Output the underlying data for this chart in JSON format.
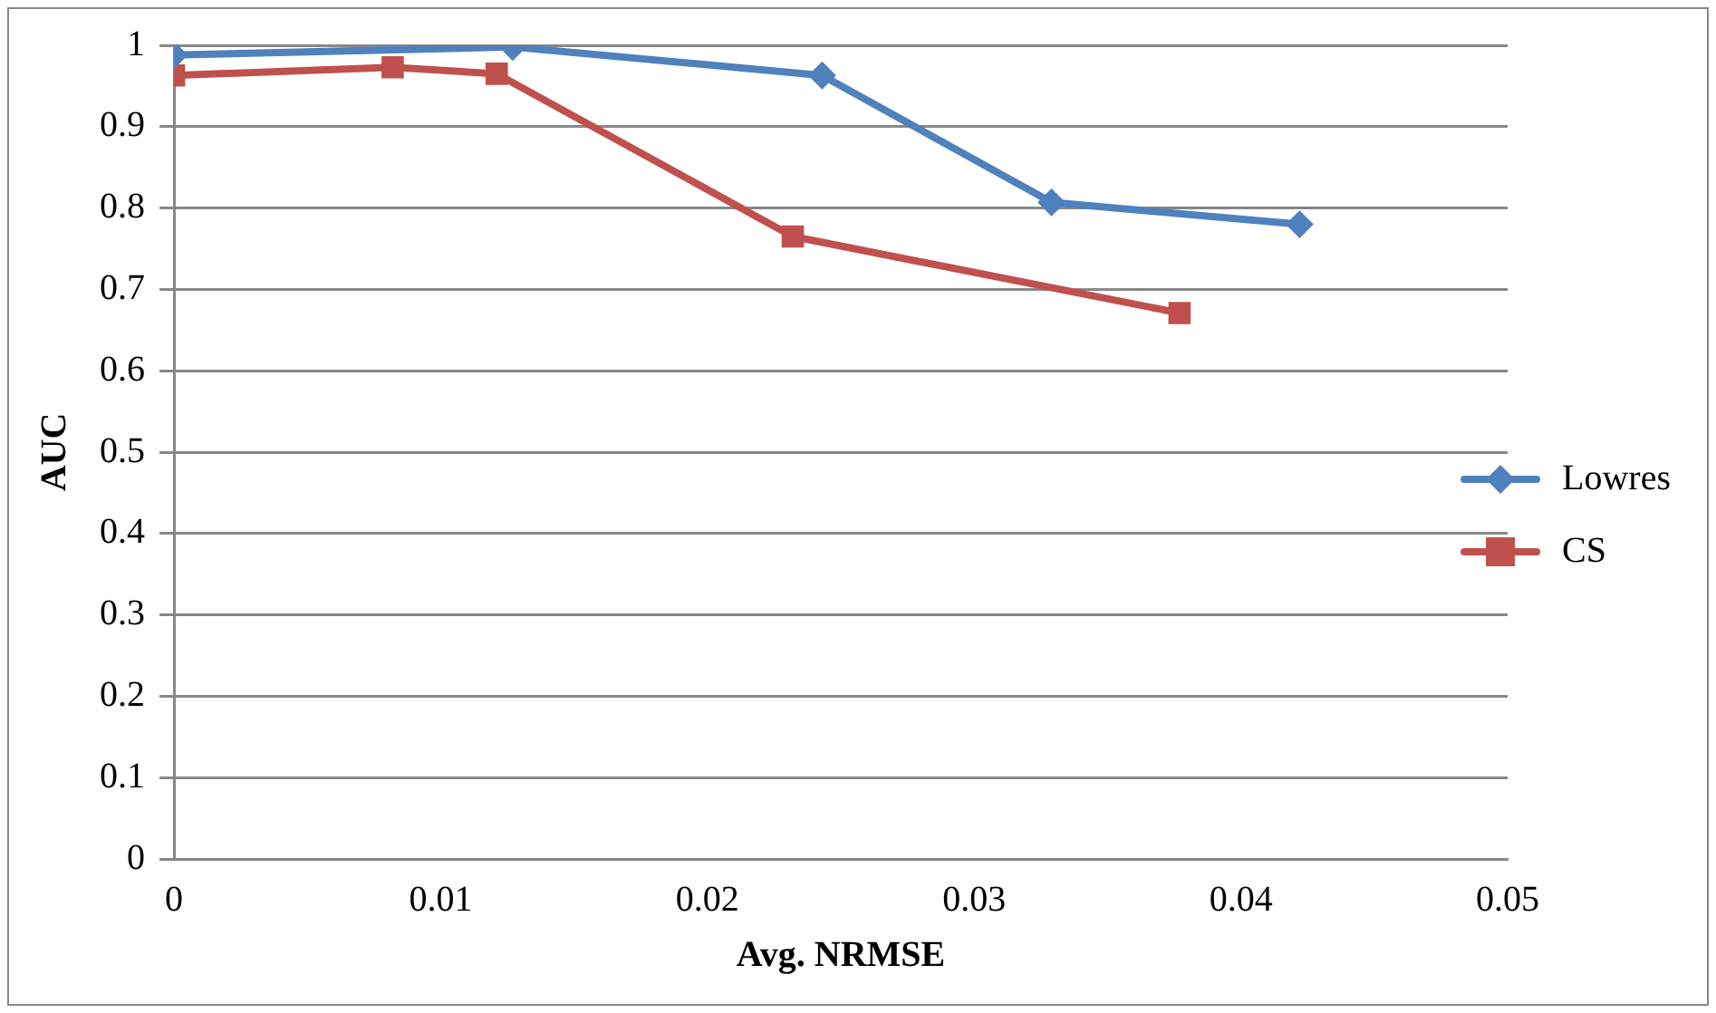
{
  "chart_data": {
    "type": "line",
    "xlabel": "Avg. NRMSE",
    "ylabel": "AUC",
    "xlim": [
      0,
      0.05
    ],
    "xticks": [
      0,
      0.01,
      0.02,
      0.03,
      0.04,
      0.05
    ],
    "ylim": [
      0,
      1
    ],
    "yticks": [
      0,
      0.1,
      0.2,
      0.3,
      0.4,
      0.5,
      0.6,
      0.7,
      0.8,
      0.9,
      1
    ],
    "grid": "y",
    "legend": "right",
    "line_style": "solid",
    "series": [
      {
        "name": "Lowres",
        "color": "#4f81bd",
        "marker": "diamond",
        "x": [
          0,
          0.0127,
          0.0243,
          0.0329,
          0.0422
        ],
        "values": [
          0.988,
          0.998,
          0.963,
          0.807,
          0.78
        ]
      },
      {
        "name": "CS",
        "color": "#c0504d",
        "marker": "square",
        "x": [
          0,
          0.0082,
          0.0121,
          0.0232,
          0.0377
        ],
        "values": [
          0.963,
          0.973,
          0.965,
          0.765,
          0.671
        ]
      }
    ]
  }
}
